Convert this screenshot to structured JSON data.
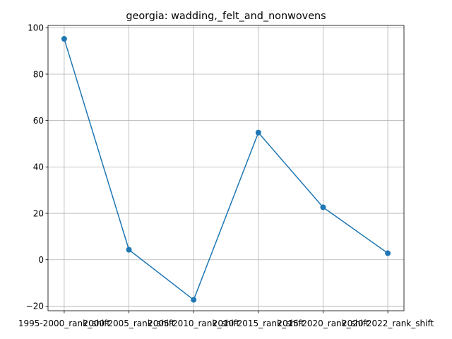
{
  "chart_data": {
    "type": "line",
    "title": "georgia: wadding,_felt_and_nonwovens",
    "xlabel": "",
    "ylabel": "",
    "categories": [
      "1995-2000_rank_shift",
      "2000-2005_rank_shift",
      "2005-2010_rank_shift",
      "2010-2015_rank_shift",
      "2015-2020_rank_shift",
      "2020-2022_rank_shift"
    ],
    "series": [
      {
        "values": [
          95.2,
          4.3,
          -17.3,
          54.8,
          22.6,
          2.8
        ]
      }
    ],
    "ylim": [
      -22,
      101
    ],
    "yticks": [
      -20,
      0,
      20,
      40,
      60,
      80,
      100
    ],
    "grid": true,
    "marker": "circle",
    "color": "#1f77b4"
  }
}
